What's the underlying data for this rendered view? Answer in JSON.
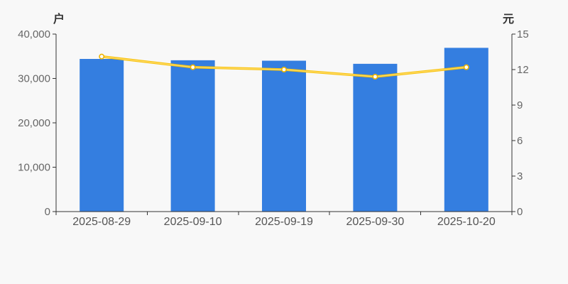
{
  "chart_data": {
    "type": "combo",
    "categories": [
      "2025-08-29",
      "2025-09-10",
      "2025-09-19",
      "2025-09-30",
      "2025-10-20"
    ],
    "series": [
      {
        "name": "bar-series",
        "type": "bar",
        "y_axis": "left",
        "values": [
          34400,
          34100,
          34000,
          33300,
          36900
        ],
        "color": "#347ee0"
      },
      {
        "name": "line-series",
        "type": "line",
        "y_axis": "right",
        "values": [
          13.1,
          12.2,
          12.0,
          11.4,
          12.2
        ],
        "color": "#f9c30d",
        "highlight_color": "#ffe182",
        "marker_fill": "#ffffff",
        "marker_stroke": "#eeb400"
      }
    ],
    "left_axis": {
      "unit": "户",
      "min": 0,
      "max": 40000,
      "tick_values": [
        0,
        10000,
        20000,
        30000,
        40000
      ],
      "tick_labels": [
        "0",
        "10,000",
        "20,000",
        "30,000",
        "40,000"
      ]
    },
    "right_axis": {
      "unit": "元",
      "min": 0,
      "max": 15,
      "tick_values": [
        0,
        3,
        6,
        9,
        12,
        15
      ],
      "tick_labels": [
        "0",
        "3",
        "6",
        "9",
        "12",
        "15"
      ]
    },
    "grid": false,
    "legend": "none"
  },
  "style": {
    "background": "#f8f8f8",
    "axis_color": "#333333",
    "tick_label_color": "#666666",
    "category_label_color": "#555555",
    "unit_label_color": "#333333"
  }
}
